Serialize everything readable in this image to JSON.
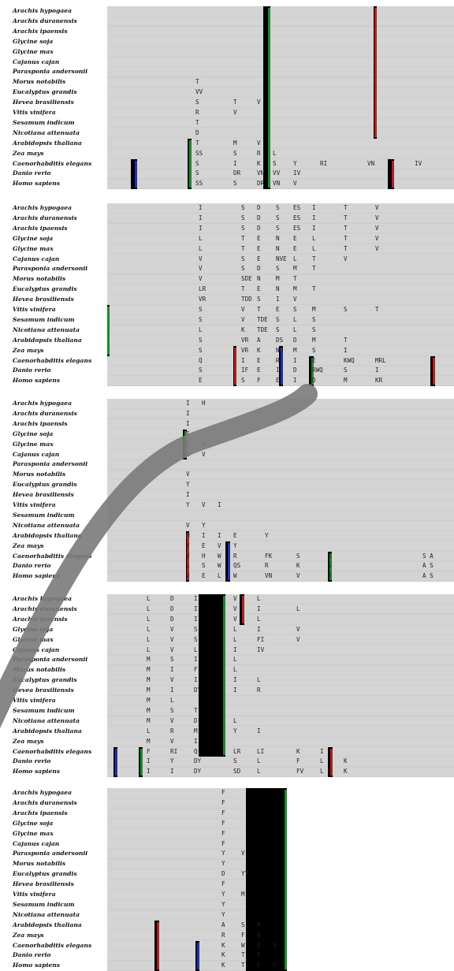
{
  "species": [
    "Arachis hypogaea",
    "Arachis duranensis",
    "Arachis ipaensis",
    "Glycine soja",
    "Glycine max",
    "Cajanus cajan",
    "Parasponia andersonii",
    "Morus notabilis",
    "Eucalyptus grandis",
    "Hevea brasiliensis",
    "Vitis vinifera",
    "Sesamum indicum",
    "Nicotiana attenuata",
    "Arabidopsis thaliana",
    "Zea mays",
    "Caenorhabditis elegans",
    "Danio rerio",
    "Homo sapiens"
  ],
  "blocks": [
    {
      "id": "block-1",
      "residues": [
        [
          "",
          "",
          "",
          "",
          "",
          "",
          "",
          ""
        ],
        [
          "",
          "",
          "",
          "",
          "",
          "",
          "",
          ""
        ],
        [
          "",
          "",
          "",
          "",
          "",
          "",
          "",
          ""
        ],
        [
          "",
          "",
          "",
          "",
          "",
          "",
          "",
          ""
        ],
        [
          "",
          "",
          "",
          "",
          "",
          "",
          "",
          ""
        ],
        [
          "",
          "",
          "",
          "",
          "",
          "",
          "",
          ""
        ],
        [
          "",
          "",
          "",
          "",
          "",
          "",
          "",
          ""
        ],
        [
          "T",
          "",
          "",
          "",
          "",
          "",
          "",
          ""
        ],
        [
          "VV",
          "",
          "",
          "",
          "",
          "",
          "",
          ""
        ],
        [
          "S",
          "T",
          "V",
          "",
          "",
          "",
          "",
          ""
        ],
        [
          "R",
          "V",
          "",
          "",
          "",
          "",
          "",
          ""
        ],
        [
          "T",
          "",
          "",
          "",
          "",
          "",
          "",
          ""
        ],
        [
          "D",
          "",
          "",
          "",
          "",
          "",
          "",
          ""
        ],
        [
          "T",
          "M",
          "V",
          "",
          "",
          "",
          "",
          ""
        ],
        [
          "SS",
          "S",
          "R",
          "L",
          "",
          "",
          "",
          ""
        ],
        [
          "S",
          "I",
          "K",
          "S",
          "Y",
          "RI",
          "VN",
          "IV"
        ],
        [
          "S",
          "DR",
          "VN",
          "VV",
          "IV",
          "",
          "",
          ""
        ],
        [
          "SS",
          "S",
          "DR",
          "VN",
          "V",
          "",
          "",
          ""
        ]
      ]
    },
    {
      "id": "block-2",
      "residues": [
        [
          "I",
          "S",
          "D",
          "S",
          "ES",
          "I",
          "T",
          "V"
        ],
        [
          "I",
          "S",
          "D",
          "S",
          "ES",
          "I",
          "T",
          "V"
        ],
        [
          "I",
          "S",
          "D",
          "S",
          "ES",
          "I",
          "T",
          "V"
        ],
        [
          "L",
          "T",
          "E",
          "N",
          "E",
          "L",
          "T",
          "V"
        ],
        [
          "L",
          "T",
          "E",
          "N",
          "E",
          "L",
          "T",
          "V"
        ],
        [
          "V",
          "S",
          "E",
          "NVE",
          "L",
          "T",
          "V",
          ""
        ],
        [
          "V",
          "S",
          "D",
          "S",
          "M",
          "T",
          "",
          ""
        ],
        [
          "V",
          "SDE",
          "N",
          "M",
          "T",
          "",
          "",
          ""
        ],
        [
          "LR",
          "T",
          "E",
          "N",
          "M",
          "T",
          "",
          ""
        ],
        [
          "VR",
          "TDD",
          "S",
          "I",
          "V",
          "",
          "",
          ""
        ],
        [
          "S",
          "V",
          "T",
          "E",
          "S",
          "M",
          "S",
          "T"
        ],
        [
          "S",
          "V",
          "TDE",
          "S",
          "L",
          "S",
          "",
          ""
        ],
        [
          "L",
          "K",
          "TDE",
          "S",
          "L",
          "S",
          "",
          ""
        ],
        [
          "S",
          "VR",
          "A",
          "DS",
          "D",
          "M",
          "T",
          ""
        ],
        [
          "S",
          "VR",
          "K",
          "ND",
          "M",
          "S",
          "I",
          ""
        ],
        [
          "Q",
          "I",
          "E",
          "R",
          "I",
          "E",
          "KWQ",
          "MRL"
        ],
        [
          "S",
          "IF",
          "E",
          "I",
          "D",
          "RWQ",
          "S",
          "I"
        ],
        [
          "E",
          "S",
          "F",
          "E",
          "I",
          "D",
          "M",
          "KR"
        ]
      ]
    },
    {
      "id": "block-3",
      "residues": [
        [
          "I",
          "H",
          "",
          "",
          "",
          "",
          "",
          ""
        ],
        [
          "I",
          "",
          "",
          "",
          "",
          "",
          "",
          ""
        ],
        [
          "I",
          "",
          "",
          "",
          "",
          "",
          "",
          ""
        ],
        [
          "I",
          "",
          "",
          "",
          "",
          "",
          "",
          ""
        ],
        [
          "I",
          "S",
          "",
          "",
          "",
          "",
          "",
          ""
        ],
        [
          "I",
          "V",
          "",
          "",
          "",
          "",
          "",
          ""
        ],
        [
          "",
          "",
          "",
          "",
          "",
          "",
          "",
          ""
        ],
        [
          "V",
          "",
          "",
          "",
          "",
          "",
          "",
          ""
        ],
        [
          "Y",
          "",
          "",
          "",
          "",
          "",
          "",
          ""
        ],
        [
          "I",
          "",
          "",
          "",
          "",
          "",
          "",
          ""
        ],
        [
          "Y",
          "V",
          "I",
          "",
          "",
          "",
          "",
          ""
        ],
        [
          "",
          "",
          "",
          "",
          "",
          "",
          "",
          ""
        ],
        [
          "V",
          "Y",
          "",
          "",
          "",
          "",
          "",
          ""
        ],
        [
          "M",
          "I",
          "I",
          "E",
          "Y",
          "",
          "",
          ""
        ],
        [
          "Y",
          "E",
          "V",
          "Y",
          "",
          "",
          "",
          ""
        ],
        [
          "V",
          "H",
          "W",
          "R",
          "FK",
          "S",
          "K",
          "S A"
        ],
        [
          "L",
          "S",
          "W",
          "QS",
          "R",
          "K",
          "S",
          "A S"
        ],
        [
          "V",
          "E",
          "L",
          "W",
          "VN",
          "V",
          "K",
          "A S"
        ]
      ]
    },
    {
      "id": "block-4",
      "residues": [
        [
          "L",
          "D",
          "I",
          "V",
          "L",
          "",
          "",
          ""
        ],
        [
          "L",
          "D",
          "I",
          "V",
          "I",
          "L",
          "",
          ""
        ],
        [
          "L",
          "D",
          "I",
          "V",
          "L",
          "",
          "",
          ""
        ],
        [
          "L",
          "V",
          "S",
          "L",
          "I",
          "V",
          "",
          ""
        ],
        [
          "L",
          "V",
          "S",
          "L",
          "FI",
          "V",
          "",
          ""
        ],
        [
          "L",
          "V",
          "L",
          "I",
          "IV",
          "",
          "",
          ""
        ],
        [
          "M",
          "S",
          "I",
          "L",
          "",
          "",
          "",
          ""
        ],
        [
          "M",
          "I",
          "F",
          "L",
          "",
          "",
          "",
          ""
        ],
        [
          "M",
          "V",
          "I",
          "I",
          "L",
          "",
          "",
          ""
        ],
        [
          "M",
          "I",
          "DY",
          "I",
          "R",
          "",
          "",
          ""
        ],
        [
          "M",
          "L",
          "",
          "",
          "",
          "",
          "",
          ""
        ],
        [
          "M",
          "S",
          "T",
          "",
          "",
          "",
          "",
          ""
        ],
        [
          "M",
          "V",
          "D",
          "L",
          "",
          "",
          "",
          ""
        ],
        [
          "L",
          "R",
          "M",
          "Y",
          "I",
          "",
          "",
          ""
        ],
        [
          "M",
          "V",
          "I",
          "",
          "",
          "",
          "",
          ""
        ],
        [
          "F",
          "RI",
          "Q",
          "LR",
          "LI",
          "K",
          "I",
          ""
        ],
        [
          "I",
          "Y",
          "DY",
          "S",
          "L",
          "F",
          "L",
          "K"
        ],
        [
          "I",
          "I",
          "DY",
          "SD",
          "L",
          "FV",
          "L",
          "K"
        ]
      ]
    },
    {
      "id": "block-5",
      "residues": [
        [
          "F",
          "",
          "",
          "",
          "",
          "",
          "",
          ""
        ],
        [
          "F",
          "",
          "",
          "",
          "",
          "",
          "",
          ""
        ],
        [
          "F",
          "",
          "",
          "",
          "",
          "",
          "",
          ""
        ],
        [
          "F",
          "",
          "",
          "",
          "",
          "",
          "",
          ""
        ],
        [
          "F",
          "",
          "",
          "",
          "",
          "",
          "",
          ""
        ],
        [
          "F",
          "",
          "",
          "",
          "",
          "",
          "",
          ""
        ],
        [
          "Y",
          "V",
          "",
          "",
          "",
          "",
          "",
          ""
        ],
        [
          "Y",
          "",
          "",
          "",
          "",
          "",
          "",
          ""
        ],
        [
          "D",
          "YY",
          "",
          "",
          "",
          "",
          "",
          ""
        ],
        [
          "F",
          "",
          "",
          "",
          "",
          "",
          "",
          ""
        ],
        [
          "Y",
          "M",
          "",
          "",
          "",
          "",
          "",
          ""
        ],
        [
          "Y",
          "",
          "",
          "",
          "",
          "",
          "",
          ""
        ],
        [
          "Y",
          "",
          "",
          "",
          "",
          "",
          "",
          ""
        ],
        [
          "A",
          "S",
          "R",
          "",
          "",
          "",
          "",
          ""
        ],
        [
          "R",
          "F",
          "K",
          "",
          "",
          "",
          "",
          ""
        ],
        [
          "K",
          "W",
          "E",
          "S",
          "",
          "",
          "",
          ""
        ],
        [
          "K",
          "T",
          "E",
          "",
          "",
          "",
          "",
          ""
        ],
        [
          "K",
          "T",
          "E",
          "S",
          "",
          "",
          "",
          ""
        ]
      ]
    }
  ]
}
